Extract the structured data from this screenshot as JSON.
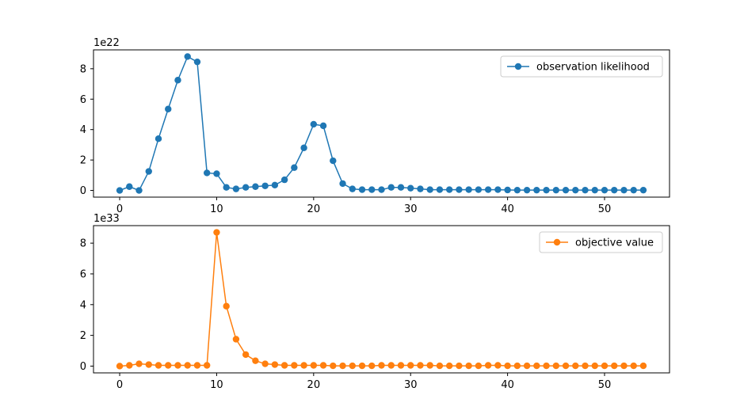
{
  "chart_data": [
    {
      "type": "line",
      "marker": "circle",
      "color": "#1f77b4",
      "offset_text": "1e22",
      "legend_position": "top-right",
      "x": [
        0,
        1,
        2,
        3,
        4,
        5,
        6,
        7,
        8,
        9,
        10,
        11,
        12,
        13,
        14,
        15,
        16,
        17,
        18,
        19,
        20,
        21,
        22,
        23,
        24,
        25,
        26,
        27,
        28,
        29,
        30,
        31,
        32,
        33,
        34,
        35,
        36,
        37,
        38,
        39,
        40,
        41,
        42,
        43,
        44,
        45,
        46,
        47,
        48,
        49,
        50,
        51,
        52,
        53,
        54
      ],
      "series": [
        {
          "name": "observation likelihood",
          "values": [
            0.0,
            0.25,
            0.0,
            1.25,
            3.4,
            5.35,
            7.25,
            8.8,
            8.45,
            1.15,
            1.1,
            0.2,
            0.1,
            0.2,
            0.25,
            0.3,
            0.35,
            0.7,
            1.5,
            2.8,
            4.35,
            4.25,
            1.95,
            0.45,
            0.1,
            0.05,
            0.05,
            0.05,
            0.2,
            0.2,
            0.15,
            0.1,
            0.05,
            0.05,
            0.05,
            0.05,
            0.05,
            0.05,
            0.05,
            0.05,
            0.03,
            0.02,
            0.02,
            0.02,
            0.02,
            0.02,
            0.02,
            0.02,
            0.02,
            0.02,
            0.02,
            0.02,
            0.02,
            0.02,
            0.02
          ]
        }
      ],
      "xlim": [
        -2.7,
        56.7
      ],
      "ylim": [
        -0.44,
        9.24
      ],
      "xticks": [
        0,
        10,
        20,
        30,
        40,
        50
      ],
      "yticks": [
        0,
        2,
        4,
        6,
        8
      ]
    },
    {
      "type": "line",
      "marker": "circle",
      "color": "#ff7f0e",
      "offset_text": "1e33",
      "legend_position": "top-right",
      "x": [
        0,
        1,
        2,
        3,
        4,
        5,
        6,
        7,
        8,
        9,
        10,
        11,
        12,
        13,
        14,
        15,
        16,
        17,
        18,
        19,
        20,
        21,
        22,
        23,
        24,
        25,
        26,
        27,
        28,
        29,
        30,
        31,
        32,
        33,
        34,
        35,
        36,
        37,
        38,
        39,
        40,
        41,
        42,
        43,
        44,
        45,
        46,
        47,
        48,
        49,
        50,
        51,
        52,
        53,
        54
      ],
      "series": [
        {
          "name": "objective value",
          "values": [
            0.0,
            0.05,
            0.15,
            0.1,
            0.05,
            0.05,
            0.05,
            0.05,
            0.05,
            0.05,
            8.7,
            3.9,
            1.75,
            0.75,
            0.35,
            0.15,
            0.1,
            0.05,
            0.05,
            0.05,
            0.05,
            0.05,
            0.02,
            0.02,
            0.02,
            0.02,
            0.02,
            0.05,
            0.05,
            0.05,
            0.05,
            0.05,
            0.05,
            0.02,
            0.02,
            0.02,
            0.02,
            0.02,
            0.05,
            0.05,
            0.02,
            0.02,
            0.02,
            0.02,
            0.02,
            0.02,
            0.02,
            0.02,
            0.02,
            0.02,
            0.02,
            0.02,
            0.02,
            0.02,
            0.02
          ]
        }
      ],
      "xlim": [
        -2.7,
        56.7
      ],
      "ylim": [
        -0.44,
        9.14
      ],
      "xticks": [
        0,
        10,
        20,
        30,
        40,
        50
      ],
      "yticks": [
        0,
        2,
        4,
        6,
        8
      ]
    }
  ]
}
